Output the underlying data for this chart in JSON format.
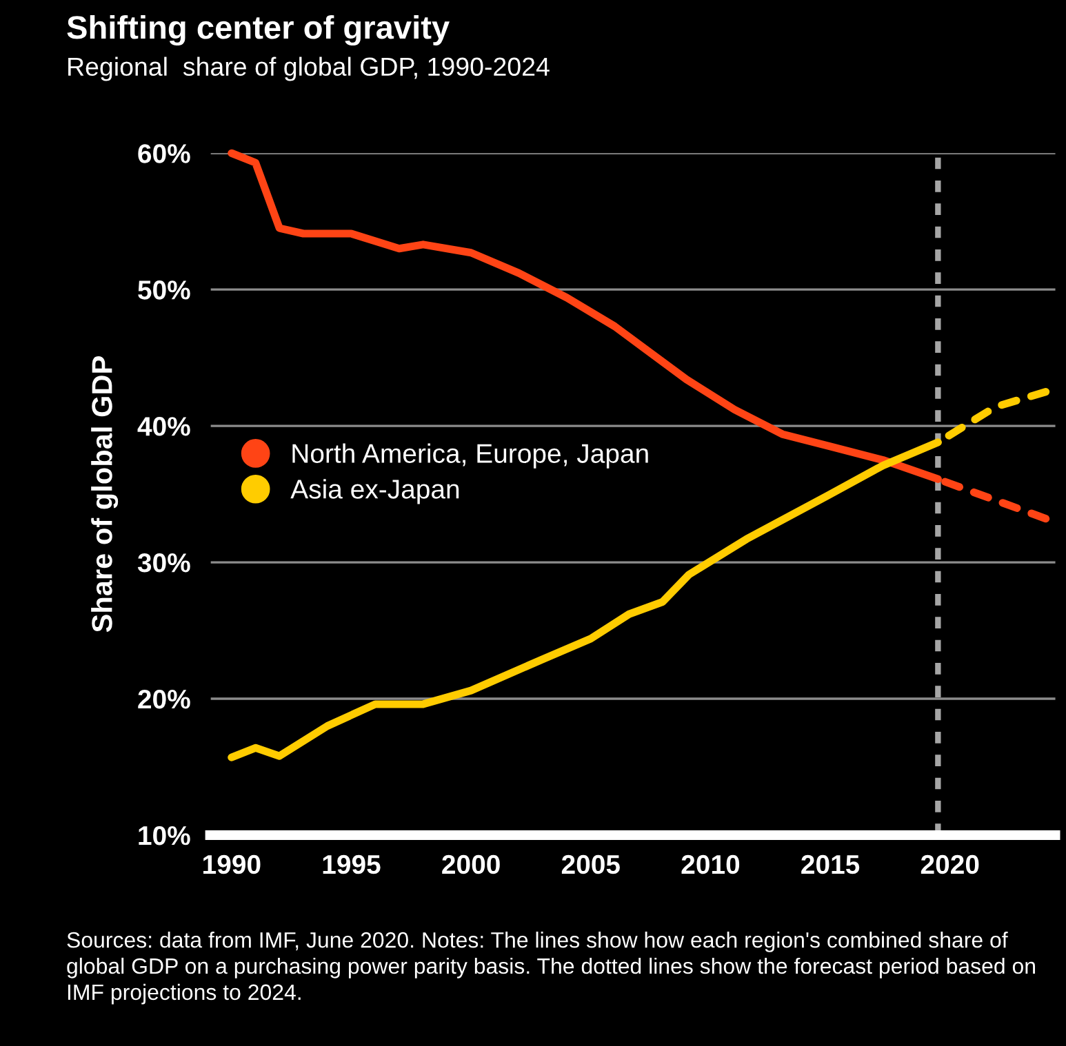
{
  "chart_data": {
    "type": "line",
    "title": "Shifting center of gravity",
    "subtitle": "Regional  share of global GDP, 1990-2024",
    "ylabel": "Share of global GDP",
    "xlim": [
      1989.1,
      2024.4
    ],
    "xticks": [
      1990,
      1995,
      2000,
      2005,
      2010,
      2015,
      2020
    ],
    "ylim": [
      10,
      60
    ],
    "yticks": [
      {
        "value": 10,
        "label": "10%"
      },
      {
        "value": 20,
        "label": "20%"
      },
      {
        "value": 30,
        "label": "30%"
      },
      {
        "value": 40,
        "label": "40%"
      },
      {
        "value": 50,
        "label": "50%"
      },
      {
        "value": 60,
        "label": "60%"
      }
    ],
    "grid": "y",
    "legend": "left",
    "marker": "none",
    "series": [
      {
        "name": "North America, Europe, Japan",
        "color": "#ff4415",
        "line_style": "solid",
        "x": [
          1990,
          1991,
          1992,
          1993,
          1995,
          1997,
          1998,
          2000,
          2002,
          2004,
          2006,
          2009,
          2011,
          2013,
          2015,
          2017.2,
          2019.5
        ],
        "values": [
          60.0,
          59.3,
          54.5,
          54.1,
          54.1,
          53.0,
          53.3,
          52.7,
          51.2,
          49.4,
          47.3,
          43.4,
          41.2,
          39.4,
          38.5,
          37.5,
          36.1
        ]
      },
      {
        "name": "Asia ex-Japan",
        "color": "#ffcc00",
        "line_style": "solid",
        "x": [
          1990,
          1991,
          1992,
          1994,
          1996,
          1998,
          2000,
          2003,
          2005,
          2006.6,
          2008,
          2009.1,
          2011.5,
          2014.9,
          2017.2,
          2019.5
        ],
        "values": [
          15.7,
          16.4,
          15.8,
          18.0,
          19.6,
          19.6,
          20.6,
          22.9,
          24.4,
          26.2,
          27.1,
          29.1,
          31.7,
          34.9,
          37.1,
          38.8
        ]
      },
      {
        "color": "#ff4415",
        "line_style": "dashed",
        "x": [
          2019.5,
          2024
        ],
        "values": [
          36.1,
          33.2
        ]
      },
      {
        "color": "#ffcc00",
        "line_style": "dashed",
        "x": [
          2019.5,
          2021.9,
          2024
        ],
        "values": [
          38.8,
          41.4,
          42.5
        ]
      }
    ],
    "ref_lines": [
      {
        "axis": "x",
        "value": 2019.5,
        "color": "#a6a6a6",
        "line_style": "dashed"
      }
    ],
    "annotations": [
      "Sources: data from IMF, June 2020. Notes: The lines show how each region's combined share of global GDP on a purchasing power parity basis. The dotted lines show the forecast period based on IMF projections to 2024."
    ]
  }
}
